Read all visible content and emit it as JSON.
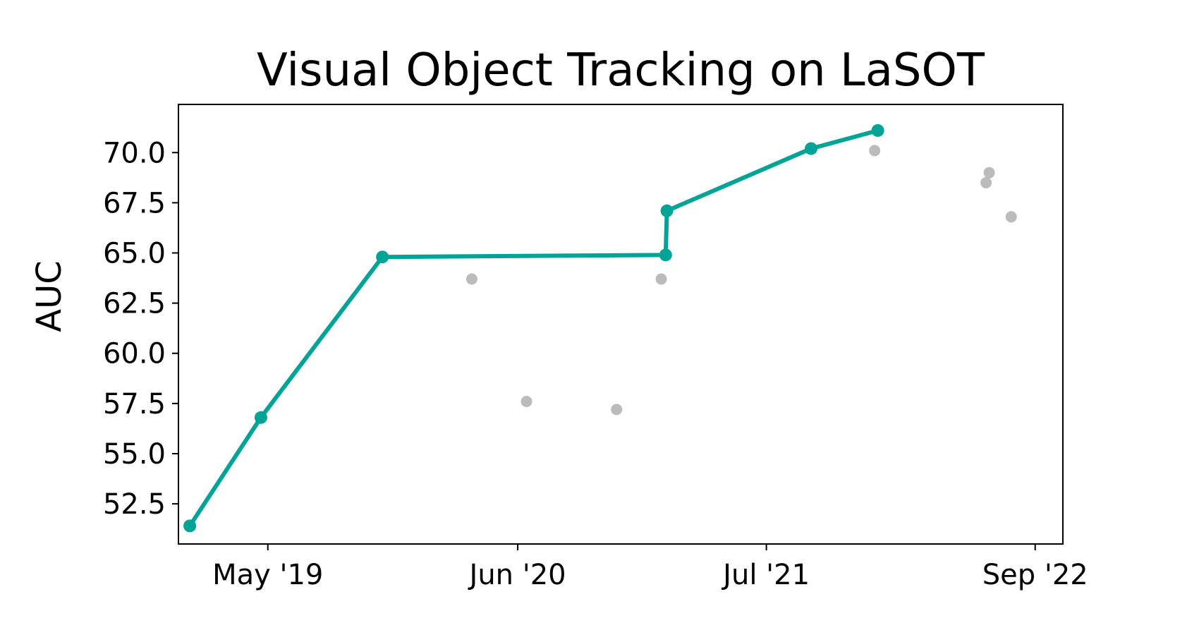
{
  "chart_data": {
    "type": "scatter",
    "title": "Visual Object Tracking on LaSOT",
    "xlabel": "",
    "ylabel": "AUC",
    "x_ticks": [
      {
        "date": "2019-05-01",
        "label": "May '19"
      },
      {
        "date": "2020-06-01",
        "label": "Jun '20"
      },
      {
        "date": "2021-07-01",
        "label": "Jul '21"
      },
      {
        "date": "2022-09-01",
        "label": "Sep '22"
      }
    ],
    "y_ticks": [
      52.5,
      55.0,
      57.5,
      60.0,
      62.5,
      65.0,
      67.5,
      70.0
    ],
    "xlim": [
      "2018-12-10",
      "2022-10-15"
    ],
    "ylim": [
      50.5,
      72.4
    ],
    "grid": false,
    "series": [
      {
        "style": "line-markers",
        "color": "#00a496",
        "points": [
          {
            "x": "2018-12-28",
            "y": 51.4
          },
          {
            "x": "2019-04-20",
            "y": 56.8
          },
          {
            "x": "2019-10-30",
            "y": 64.8
          },
          {
            "x": "2021-01-22",
            "y": 64.9
          },
          {
            "x": "2021-01-24",
            "y": 67.1
          },
          {
            "x": "2021-09-10",
            "y": 70.2
          },
          {
            "x": "2021-12-25",
            "y": 71.1
          }
        ]
      },
      {
        "style": "markers",
        "color": "#bbbbbb",
        "points": [
          {
            "x": "2020-03-20",
            "y": 63.7
          },
          {
            "x": "2020-06-15",
            "y": 57.6
          },
          {
            "x": "2020-11-05",
            "y": 57.2
          },
          {
            "x": "2021-01-15",
            "y": 63.7
          },
          {
            "x": "2021-12-20",
            "y": 70.1
          },
          {
            "x": "2022-06-20",
            "y": 69.0
          },
          {
            "x": "2022-06-15",
            "y": 68.5
          },
          {
            "x": "2022-07-25",
            "y": 66.8
          }
        ]
      }
    ]
  }
}
